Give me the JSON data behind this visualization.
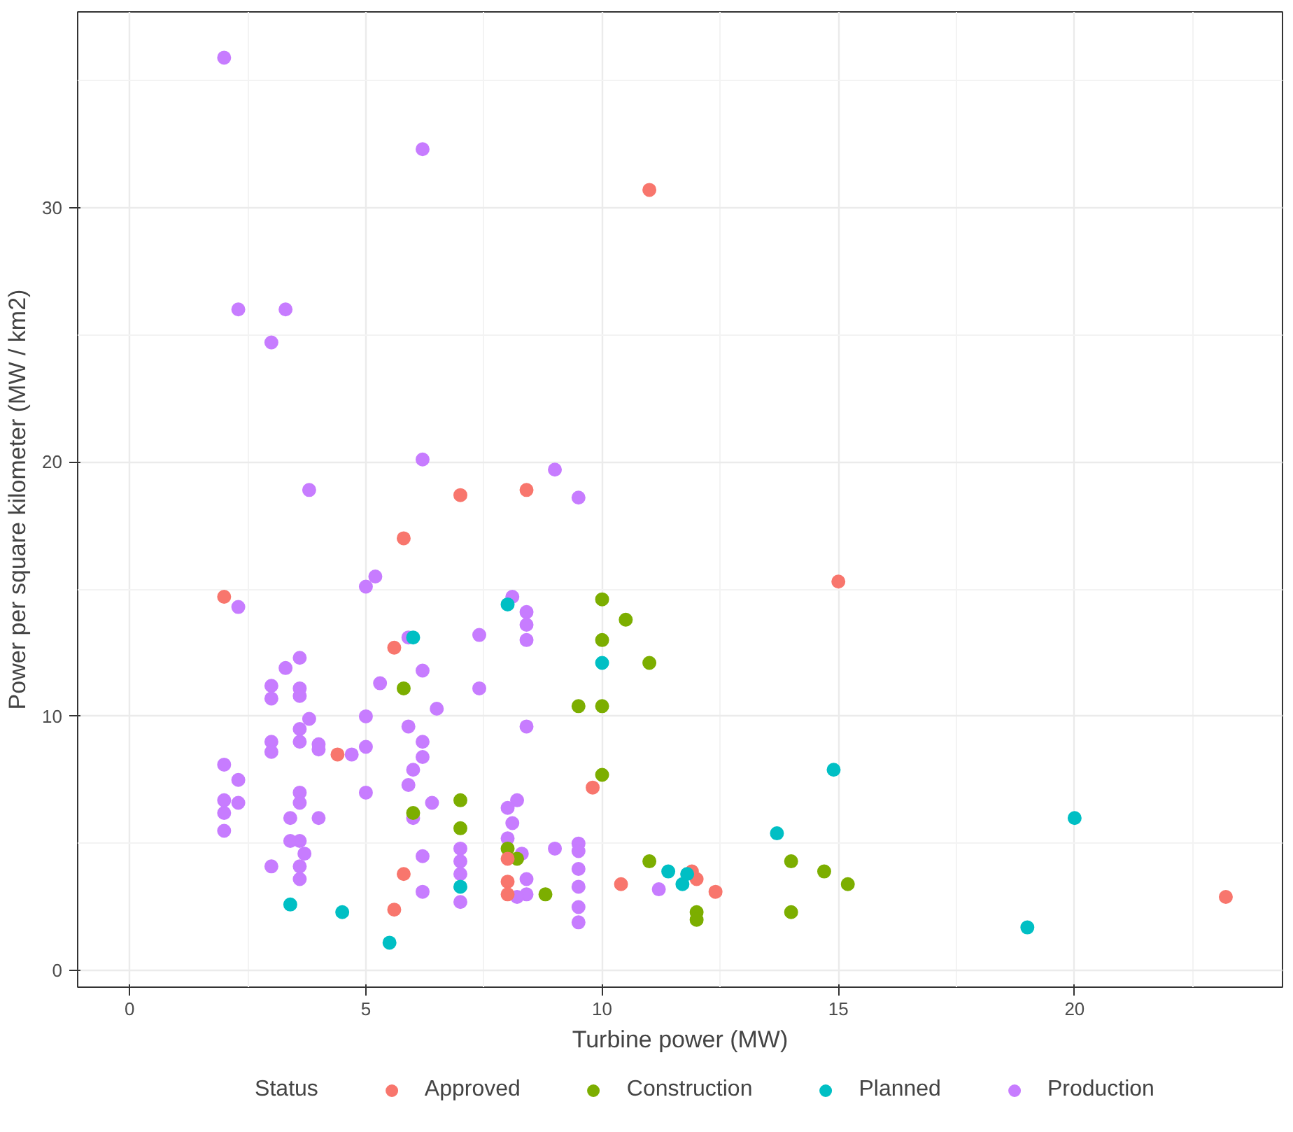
{
  "chart_data": {
    "type": "scatter",
    "xlabel": "Turbine power (MW)",
    "ylabel": "Power per square kilometer (MW / km2)",
    "legend_title": "Status",
    "legend": "bottom",
    "grid": true,
    "marker": "circle",
    "xlim": [
      -1.1,
      24.4
    ],
    "ylim": [
      -0.65,
      37.7
    ],
    "xticks": [
      0,
      5,
      10,
      15,
      20
    ],
    "yticks": [
      0,
      10,
      20,
      30
    ],
    "series": [
      {
        "name": "Approved",
        "color": "#f8766d",
        "x": [
          11.0,
          2.0,
          15.0,
          7.0,
          8.4,
          5.8,
          5.6,
          4.4,
          9.8,
          5.8,
          5.6,
          8.0,
          8.0,
          8.0,
          10.4,
          12.0,
          12.4,
          23.2,
          11.9
        ],
        "values": [
          30.7,
          14.7,
          15.3,
          18.7,
          18.9,
          17.0,
          12.7,
          8.5,
          7.2,
          3.8,
          2.4,
          4.4,
          3.5,
          3.0,
          3.4,
          3.6,
          3.1,
          2.9,
          3.9
        ]
      },
      {
        "name": "Construction",
        "color": "#7cae00",
        "x": [
          5.8,
          6.0,
          7.0,
          7.0,
          8.0,
          8.2,
          8.8,
          9.5,
          10.0,
          10.0,
          10.0,
          10.0,
          10.5,
          11.0,
          11.0,
          12.0,
          12.0,
          14.0,
          14.0,
          14.7,
          15.2
        ],
        "values": [
          11.1,
          6.2,
          6.7,
          5.6,
          4.8,
          4.4,
          3.0,
          10.4,
          14.6,
          13.0,
          10.4,
          7.7,
          13.8,
          12.1,
          4.3,
          2.3,
          2.0,
          4.3,
          2.3,
          3.9,
          3.4
        ]
      },
      {
        "name": "Planned",
        "color": "#00bfc4",
        "x": [
          3.4,
          4.5,
          5.5,
          6.0,
          7.0,
          8.0,
          10.0,
          11.4,
          11.7,
          11.8,
          13.7,
          14.9,
          19.0,
          20.0
        ],
        "values": [
          2.6,
          2.3,
          1.1,
          13.1,
          3.3,
          14.4,
          12.1,
          3.9,
          3.4,
          3.8,
          5.4,
          7.9,
          1.7,
          6.0
        ]
      },
      {
        "name": "Production",
        "color": "#c77cff",
        "x": [
          2.0,
          6.2,
          2.3,
          3.3,
          3.0,
          3.8,
          6.2,
          9.0,
          9.5,
          5.2,
          5.0,
          2.3,
          8.1,
          8.4,
          8.4,
          8.4,
          7.4,
          5.9,
          6.2,
          3.6,
          3.3,
          3.0,
          3.0,
          3.6,
          3.6,
          5.3,
          7.4,
          6.5,
          3.8,
          3.6,
          3.6,
          3.0,
          3.0,
          2.0,
          4.0,
          4.0,
          4.7,
          5.0,
          5.0,
          5.9,
          6.2,
          6.2,
          6.0,
          5.9,
          8.4,
          2.3,
          2.0,
          2.0,
          2.0,
          2.3,
          3.6,
          3.6,
          3.4,
          4.0,
          5.0,
          6.0,
          6.4,
          8.2,
          8.0,
          8.1,
          8.0,
          8.3,
          9.0,
          3.6,
          3.4,
          3.7,
          3.6,
          3.6,
          3.0,
          6.2,
          7.0,
          7.0,
          7.0,
          7.0,
          8.4,
          8.4,
          9.5,
          9.5,
          9.5,
          9.5,
          9.5,
          9.5,
          11.2,
          6.2,
          8.2
        ],
        "values": [
          35.9,
          32.3,
          26.0,
          26.0,
          24.7,
          18.9,
          20.1,
          19.7,
          18.6,
          15.5,
          15.1,
          14.3,
          14.7,
          14.1,
          13.6,
          13.0,
          13.2,
          13.1,
          11.8,
          12.3,
          11.9,
          11.2,
          10.7,
          11.1,
          10.8,
          11.3,
          11.1,
          10.3,
          9.9,
          9.5,
          9.0,
          9.0,
          8.6,
          8.1,
          8.9,
          8.7,
          8.5,
          10.0,
          8.8,
          9.6,
          9.0,
          8.4,
          7.9,
          7.3,
          9.6,
          7.5,
          6.7,
          6.2,
          5.5,
          6.6,
          7.0,
          6.6,
          6.0,
          6.0,
          7.0,
          6.0,
          6.6,
          6.7,
          6.4,
          5.8,
          5.2,
          4.6,
          4.8,
          5.1,
          5.1,
          4.6,
          4.1,
          3.6,
          4.1,
          4.5,
          4.8,
          4.3,
          3.8,
          2.7,
          3.0,
          3.6,
          5.0,
          4.7,
          4.0,
          3.3,
          2.5,
          1.9,
          3.2,
          3.1,
          2.9
        ]
      }
    ]
  }
}
